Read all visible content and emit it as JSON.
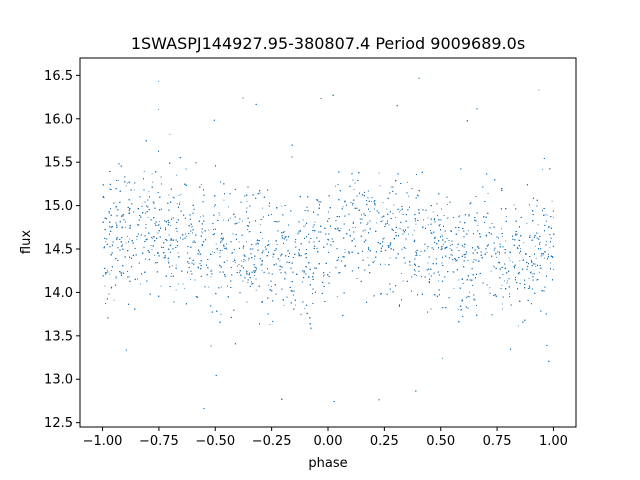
{
  "chart_data": {
    "type": "scatter",
    "title": "1SWASPJ144927.95-380807.4 Period 9009689.0s",
    "xlabel": "phase",
    "ylabel": "flux",
    "xlim": [
      -1.1,
      1.1
    ],
    "ylim": [
      12.45,
      16.7
    ],
    "xticks": [
      -1.0,
      -0.75,
      -0.5,
      -0.25,
      0.0,
      0.25,
      0.5,
      0.75,
      1.0
    ],
    "xtick_labels": [
      "−1.00",
      "−0.75",
      "−0.50",
      "−0.25",
      "0.00",
      "0.25",
      "0.50",
      "0.75",
      "1.00"
    ],
    "yticks": [
      12.5,
      13.0,
      13.5,
      14.0,
      14.5,
      15.0,
      15.5,
      16.0,
      16.5
    ],
    "ytick_labels": [
      "12.5",
      "13.0",
      "13.5",
      "14.0",
      "14.5",
      "15.0",
      "15.5",
      "16.0",
      "16.5"
    ],
    "grid": false,
    "legend": false,
    "marker_color": "#1f77b4",
    "series": [
      {
        "phase_range": [
          -1.0,
          1.0
        ],
        "flux_center_profile": {
          "phase": [
            -1.0,
            -0.9,
            -0.75,
            -0.6,
            -0.5,
            -0.4,
            -0.25,
            -0.1,
            0.0,
            0.1,
            0.25,
            0.4,
            0.5,
            0.6,
            0.75,
            0.9,
            1.0
          ],
          "flux": [
            14.6,
            14.75,
            14.7,
            14.65,
            14.55,
            14.5,
            14.45,
            14.4,
            14.6,
            14.75,
            14.7,
            14.65,
            14.55,
            14.5,
            14.45,
            14.4,
            14.6
          ]
        },
        "flux_typical_range": [
          13.8,
          15.3
        ],
        "flux_full_range": [
          12.6,
          16.5
        ],
        "approx_points": 9000
      }
    ]
  }
}
